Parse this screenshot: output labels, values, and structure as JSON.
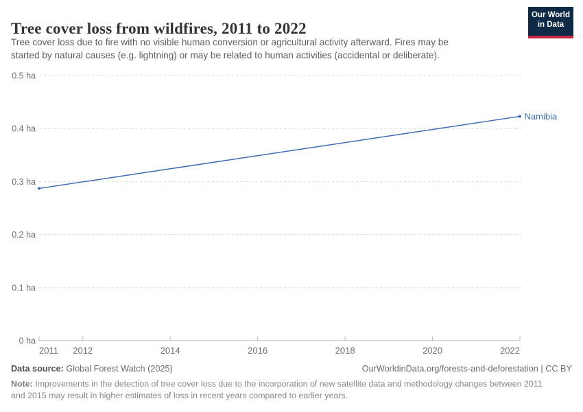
{
  "header": {
    "title": "Tree cover loss from wildfires, 2011 to 2022",
    "subtitle_line1": "Tree cover loss due to fire with no visible human conversion or agricultural activity afterward. Fires may be",
    "subtitle_line2": "started by natural causes (e.g. lightning) or may be related to human activities (accidental or deliberate).",
    "logo": {
      "line1": "Our World",
      "line2": "in Data",
      "background_color": "#0e2a47",
      "accent_color": "#c82641"
    }
  },
  "chart_data": {
    "type": "line",
    "title": "Tree cover loss from wildfires, 2011 to 2022",
    "unit": "ha",
    "xlim": [
      2011,
      2022
    ],
    "ylim": [
      0,
      0.5
    ],
    "grid": "horizontal-dashed",
    "x_ticks": [
      2011,
      2012,
      2014,
      2016,
      2018,
      2020,
      2022
    ],
    "y_ticks": [
      {
        "value": 0,
        "label": "0 ha"
      },
      {
        "value": 0.1,
        "label": "0.1 ha"
      },
      {
        "value": 0.2,
        "label": "0.2 ha"
      },
      {
        "value": 0.3,
        "label": "0.3 ha"
      },
      {
        "value": 0.4,
        "label": "0.4 ha"
      },
      {
        "value": 0.5,
        "label": "0.5 ha"
      }
    ],
    "series": [
      {
        "name": "Namibia",
        "color": "#3d6bb3",
        "points": [
          {
            "x": 2011,
            "y": 0.287
          },
          {
            "x": 2022,
            "y": 0.423
          }
        ]
      }
    ],
    "colors": {
      "gridline": "#d8d8d8",
      "axis": "#b9b9b9",
      "tick_label": "#6e6e6e"
    }
  },
  "footer": {
    "datasource_label": "Data source:",
    "datasource_value": "Global Forest Watch (2025)",
    "link": "OurWorldinData.org/forests-and-deforestation | CC BY",
    "note_label": "Note:",
    "note_line1": "Improvements in the detection of tree cover loss due to the incorporation of new satellite data and methodology changes between 2011",
    "note_line2": "and 2015 may result in higher estimates of loss in recent years compared to earlier years."
  }
}
